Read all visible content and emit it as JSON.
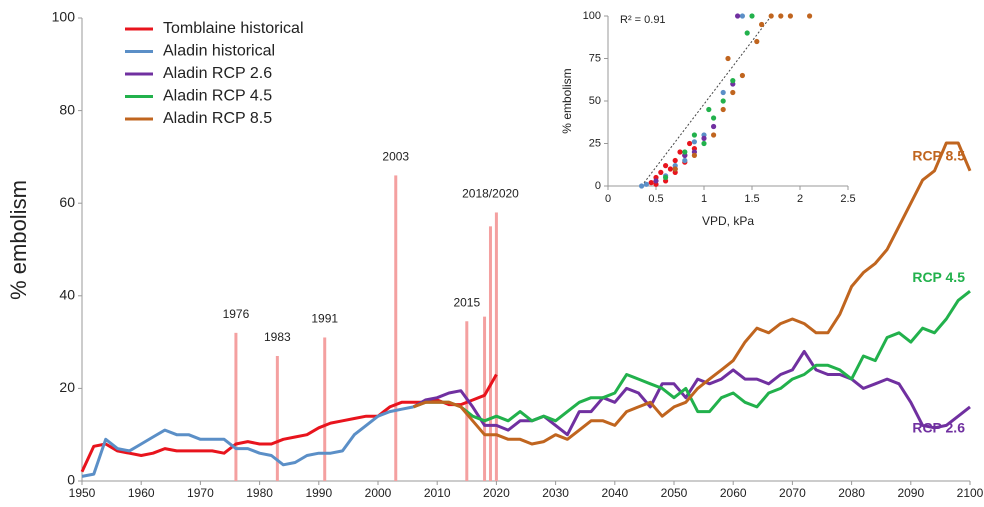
{
  "chart_data": [
    {
      "type": "line",
      "ylabel": "% embolism",
      "legend": "upper left",
      "xlim": [
        1950,
        2100
      ],
      "xticks": [
        1950,
        1960,
        1970,
        1980,
        1990,
        2000,
        2010,
        2020,
        2030,
        2040,
        2050,
        2060,
        2070,
        2080,
        2090,
        2100
      ],
      "ylim": [
        0,
        100
      ],
      "yticks": [
        0,
        20,
        40,
        60,
        80,
        100
      ],
      "events": {
        "color": "#f4a0a0",
        "x": [
          1976,
          1983,
          1991,
          2003,
          2015,
          2018,
          2019,
          2020
        ],
        "values": [
          32,
          27,
          31,
          66,
          34.5,
          35.5,
          55,
          58
        ]
      },
      "annotations": [
        {
          "text": "1976",
          "x": 1976
        },
        {
          "text": "1983",
          "x": 1983
        },
        {
          "text": "1991",
          "x": 1991
        },
        {
          "text": "2003",
          "x": 2003
        },
        {
          "text": "2015",
          "x": 2015
        },
        {
          "text": "2018/2020",
          "x": 2019
        }
      ],
      "series": [
        {
          "name": "Tomblaine historical",
          "color": "#e8141d",
          "x": [
            1950,
            1952,
            1954,
            1956,
            1958,
            1960,
            1962,
            1964,
            1966,
            1968,
            1970,
            1972,
            1974,
            1976,
            1978,
            1980,
            1982,
            1984,
            1986,
            1988,
            1990,
            1992,
            1994,
            1996,
            1998,
            2000,
            2002,
            2004,
            2006,
            2008,
            2010,
            2012,
            2014,
            2016,
            2018,
            2020
          ],
          "values": [
            2,
            7.5,
            8,
            6.5,
            6,
            5.5,
            6,
            7,
            6.5,
            6.5,
            6.5,
            6.5,
            6,
            8,
            8.5,
            8,
            8,
            9,
            9.5,
            10,
            11.5,
            12.5,
            13,
            13.5,
            14,
            14,
            16,
            17,
            17,
            17,
            17.5,
            16.5,
            16.5,
            17.5,
            18.5,
            23
          ]
        },
        {
          "name": "Aladin historical",
          "color": "#5b8fc7",
          "x": [
            1950,
            1952,
            1954,
            1956,
            1958,
            1960,
            1962,
            1964,
            1966,
            1968,
            1970,
            1972,
            1974,
            1976,
            1978,
            1980,
            1982,
            1984,
            1986,
            1988,
            1990,
            1992,
            1994,
            1996,
            1998,
            2000,
            2002,
            2004,
            2006
          ],
          "values": [
            1,
            1.5,
            9,
            7,
            6.5,
            8,
            9.5,
            11,
            10,
            10,
            9,
            9,
            9,
            7,
            7,
            6,
            5.5,
            3.5,
            4,
            5.5,
            6,
            6,
            6.5,
            10,
            12,
            14,
            15,
            15.5,
            16
          ]
        },
        {
          "name": "Aladin RCP 2.6",
          "color": "#7030a0",
          "label": "RCP 2.6",
          "x": [
            2006,
            2008,
            2010,
            2012,
            2014,
            2016,
            2018,
            2020,
            2022,
            2024,
            2026,
            2028,
            2030,
            2032,
            2034,
            2036,
            2038,
            2040,
            2042,
            2044,
            2046,
            2048,
            2050,
            2052,
            2054,
            2056,
            2058,
            2060,
            2062,
            2064,
            2066,
            2068,
            2070,
            2072,
            2074,
            2076,
            2078,
            2080,
            2082,
            2084,
            2086,
            2088,
            2090,
            2092,
            2094,
            2096,
            2098,
            2100
          ],
          "values": [
            16,
            17.5,
            18,
            19,
            19.5,
            16,
            12,
            12,
            11,
            13,
            13,
            14,
            12,
            10,
            15,
            15,
            18,
            17,
            20,
            19,
            16,
            21,
            21,
            18,
            22,
            21,
            22,
            24,
            22,
            22,
            21,
            23,
            24,
            28,
            24,
            23,
            23,
            22,
            20,
            21,
            22,
            21,
            17,
            12,
            11.5,
            12,
            14,
            16
          ]
        },
        {
          "name": "Aladin RCP 4.5",
          "color": "#22b14c",
          "label": "RCP 4.5",
          "x": [
            2006,
            2008,
            2010,
            2012,
            2014,
            2016,
            2018,
            2020,
            2022,
            2024,
            2026,
            2028,
            2030,
            2032,
            2034,
            2036,
            2038,
            2040,
            2042,
            2044,
            2046,
            2048,
            2050,
            2052,
            2054,
            2056,
            2058,
            2060,
            2062,
            2064,
            2066,
            2068,
            2070,
            2072,
            2074,
            2076,
            2078,
            2080,
            2082,
            2084,
            2086,
            2088,
            2090,
            2092,
            2094,
            2096,
            2098,
            2100
          ],
          "values": [
            16,
            17,
            17,
            17,
            16,
            14,
            13,
            14,
            13,
            15,
            13,
            14,
            13,
            15,
            17,
            18,
            18,
            19,
            23,
            22,
            21,
            20,
            18,
            20,
            15,
            15,
            18,
            19,
            17,
            16,
            19,
            20,
            22,
            23,
            25,
            25,
            24,
            22,
            27,
            26,
            31,
            32,
            30,
            33,
            32,
            35,
            39,
            41
          ]
        },
        {
          "name": "Aladin RCP 8.5",
          "color": "#c0651f",
          "label": "RCP 8.5",
          "x": [
            2006,
            2008,
            2010,
            2012,
            2014,
            2016,
            2018,
            2020,
            2022,
            2024,
            2026,
            2028,
            2030,
            2032,
            2034,
            2036,
            2038,
            2040,
            2042,
            2044,
            2046,
            2048,
            2050,
            2052,
            2054,
            2056,
            2058,
            2060,
            2062,
            2064,
            2066,
            2068,
            2070,
            2072,
            2074,
            2076,
            2078,
            2080,
            2082,
            2084,
            2086,
            2088,
            2090,
            2092,
            2094,
            2096,
            2098,
            2100
          ],
          "values": [
            16,
            17,
            17,
            17,
            16,
            13,
            10,
            10,
            9,
            9,
            8,
            8.5,
            10,
            9,
            11,
            13,
            13,
            12,
            15,
            16,
            17,
            14,
            16,
            17,
            20,
            22,
            24,
            26,
            30,
            33,
            32,
            34,
            35,
            34,
            32,
            32,
            36,
            42,
            45,
            47,
            50,
            55,
            60,
            65,
            67,
            73,
            73,
            67
          ]
        }
      ]
    },
    {
      "type": "scatter",
      "xlabel": "VPD, kPa",
      "ylabel": "% embolism",
      "annotation": "R² = 0.91",
      "xlim": [
        0,
        2.5
      ],
      "xticks": [
        0,
        0.5,
        1,
        1.5,
        2,
        2.5
      ],
      "ylim": [
        0,
        100
      ],
      "yticks": [
        0,
        25,
        50,
        75,
        100
      ],
      "fit": {
        "x": [
          0.35,
          1.7
        ],
        "values": [
          0,
          100
        ]
      },
      "series": [
        {
          "color": "#e8141d",
          "x": [
            0.45,
            0.5,
            0.55,
            0.6,
            0.65,
            0.7,
            0.75,
            0.8,
            0.85,
            0.9,
            0.6,
            0.7,
            0.8,
            0.5
          ],
          "values": [
            2,
            5,
            8,
            12,
            10,
            15,
            20,
            18,
            25,
            22,
            3,
            8,
            14,
            1
          ]
        },
        {
          "color": "#5b8fc7",
          "x": [
            0.35,
            0.4,
            0.6,
            0.8,
            1.0,
            1.2,
            1.4,
            0.9,
            0.7
          ],
          "values": [
            0,
            1,
            6,
            15,
            30,
            55,
            100,
            26,
            12
          ]
        },
        {
          "color": "#7030a0",
          "x": [
            0.5,
            0.7,
            0.9,
            1.1,
            1.3,
            1.35,
            1.0,
            0.8
          ],
          "values": [
            3,
            10,
            20,
            35,
            60,
            100,
            28,
            18
          ]
        },
        {
          "color": "#22b14c",
          "x": [
            0.6,
            0.8,
            1.0,
            1.1,
            1.2,
            1.3,
            1.45,
            1.5,
            0.9,
            1.05
          ],
          "values": [
            5,
            20,
            25,
            40,
            50,
            62,
            90,
            100,
            30,
            45
          ]
        },
        {
          "color": "#c0651f",
          "x": [
            0.7,
            0.9,
            1.1,
            1.2,
            1.3,
            1.4,
            1.6,
            1.7,
            1.8,
            1.9,
            2.1,
            1.25,
            1.55
          ],
          "values": [
            10,
            18,
            30,
            45,
            55,
            65,
            95,
            100,
            100,
            100,
            100,
            75,
            85
          ]
        }
      ]
    }
  ]
}
